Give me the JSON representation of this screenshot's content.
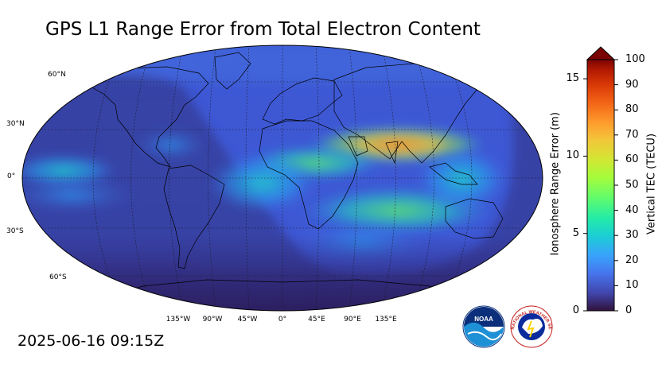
{
  "title": "GPS L1 Range Error from Total Electron Content",
  "timestamp": "2025-06-16 09:15Z",
  "map": {
    "projection": "robinson",
    "ocean_color": "#3b4fc9",
    "lat_labels": [
      "60°N",
      "30°N",
      "0°",
      "30°S",
      "60°S"
    ],
    "lon_labels": [
      "135°W",
      "90°W",
      "45°W",
      "0°",
      "45°E",
      "90°E",
      "135°E"
    ],
    "night_region": "darker shading over the Americas and South Pacific"
  },
  "colorbar": {
    "left_axis_label": "Ionosphere Range Error (m)",
    "right_axis_label": "Vertical TEC (TECU)",
    "left_ticks": [
      "0",
      "5",
      "10",
      "15"
    ],
    "right_ticks": [
      "0",
      "10",
      "20",
      "30",
      "40",
      "50",
      "60",
      "70",
      "80",
      "90",
      "100"
    ],
    "tec_range": [
      0,
      100
    ],
    "range_error_range": [
      0,
      16.24
    ],
    "extend": "max",
    "colormap": "turbo"
  },
  "logos": {
    "noaa": "NOAA",
    "nws": "NATIONAL WEATHER SERVICE"
  }
}
